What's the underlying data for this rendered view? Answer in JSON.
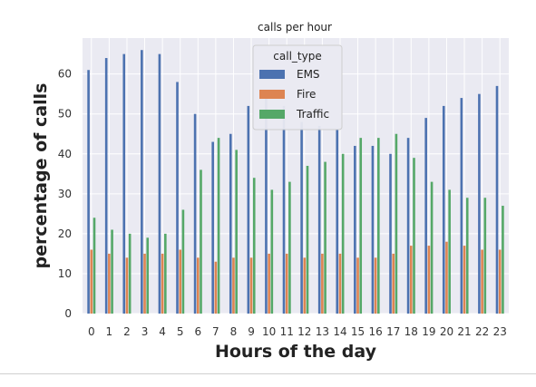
{
  "chart_data": {
    "type": "bar",
    "title": "calls per hour",
    "xlabel": "Hours of the day",
    "ylabel": "percentage of calls",
    "categories": [
      "0",
      "1",
      "2",
      "3",
      "4",
      "5",
      "6",
      "7",
      "8",
      "9",
      "10",
      "11",
      "12",
      "13",
      "14",
      "15",
      "16",
      "17",
      "18",
      "19",
      "20",
      "21",
      "22",
      "23"
    ],
    "series": [
      {
        "name": "EMS",
        "color": "#4c72b0",
        "values": [
          61,
          64,
          65,
          66,
          65,
          58,
          50,
          43,
          45,
          52,
          55,
          52,
          48,
          47,
          46,
          42,
          42,
          40,
          44,
          49,
          52,
          54,
          55,
          57
        ]
      },
      {
        "name": "Fire",
        "color": "#dd8452",
        "values": [
          16,
          15,
          14,
          15,
          15,
          16,
          14,
          13,
          14,
          14,
          15,
          15,
          14,
          15,
          15,
          14,
          14,
          15,
          17,
          17,
          18,
          17,
          16,
          16
        ]
      },
      {
        "name": "Traffic",
        "color": "#55a868",
        "values": [
          24,
          21,
          20,
          19,
          20,
          26,
          36,
          44,
          41,
          34,
          31,
          33,
          37,
          38,
          40,
          44,
          44,
          45,
          39,
          33,
          31,
          29,
          29,
          27
        ]
      }
    ],
    "ylim": [
      0,
      69
    ],
    "yticks": [
      0,
      10,
      20,
      30,
      40,
      50,
      60
    ],
    "grid": true,
    "legend": {
      "title": "call_type",
      "placement": "top-center"
    }
  }
}
